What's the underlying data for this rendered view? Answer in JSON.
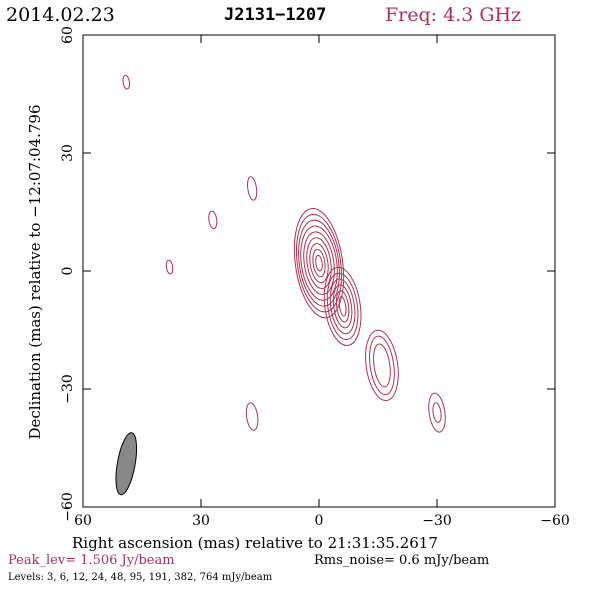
{
  "header": {
    "date": "2014.02.23",
    "source": "J2131−1207",
    "freq": "Freq: 4.3 GHz"
  },
  "footer": {
    "peak": "Peak_lev=  1.506 Jy/beam",
    "rms": "Rms_noise=  0.6 mJy/beam",
    "levels": "Levels:   3,   6,  12,  24,  48,  95, 191, 382, 764 mJy/beam"
  },
  "chart_data": {
    "type": "contour",
    "xlabel": "Right ascension (mas) relative to 21:31:35.2617",
    "ylabel": "Declination (mas) relative to −12:07:04.796",
    "xlim": [
      60,
      -60
    ],
    "ylim": [
      -60,
      60
    ],
    "xticks": [
      "60",
      "30",
      "0",
      "−30",
      "−60"
    ],
    "yticks": [
      "−60",
      "−30",
      "0",
      "30",
      "60"
    ],
    "xtick_values": [
      60,
      30,
      0,
      -30,
      -60
    ],
    "ytick_values": [
      -60,
      -30,
      0,
      30,
      60
    ],
    "contour_color": "#b03050",
    "beam_color": "#888888",
    "levels_mJy": [
      3,
      6,
      12,
      24,
      48,
      95,
      191,
      382,
      764
    ],
    "peak_Jy_per_beam": 1.506,
    "rms_mJy_per_beam": 0.6,
    "beam": {
      "x": 49,
      "y": -49,
      "major": 16,
      "minor": 4.5,
      "pa_deg": 10
    },
    "components": [
      {
        "x": 0,
        "y": 2,
        "levels": [
          {
            "w": 12,
            "h": 28
          },
          {
            "w": 11,
            "h": 25
          },
          {
            "w": 10,
            "h": 22
          },
          {
            "w": 9,
            "h": 19
          },
          {
            "w": 7.5,
            "h": 16
          },
          {
            "w": 6,
            "h": 13
          },
          {
            "w": 4.5,
            "h": 10
          },
          {
            "w": 3,
            "h": 7
          },
          {
            "w": 1.6,
            "h": 4
          }
        ]
      },
      {
        "x": -6,
        "y": -9,
        "levels": [
          {
            "w": 9,
            "h": 20
          },
          {
            "w": 7.5,
            "h": 17
          },
          {
            "w": 6,
            "h": 14
          },
          {
            "w": 4.5,
            "h": 11
          },
          {
            "w": 3,
            "h": 8
          },
          {
            "w": 1.6,
            "h": 5
          }
        ]
      },
      {
        "x": -16,
        "y": -24,
        "levels": [
          {
            "w": 8,
            "h": 18
          },
          {
            "w": 6,
            "h": 15
          },
          {
            "w": 4,
            "h": 11
          }
        ]
      },
      {
        "x": -30,
        "y": -36,
        "levels": [
          {
            "w": 4,
            "h": 10
          },
          {
            "w": 2,
            "h": 5
          }
        ]
      },
      {
        "x": 17,
        "y": -37,
        "levels": [
          {
            "w": 2.8,
            "h": 7
          }
        ]
      },
      {
        "x": 17,
        "y": 21,
        "levels": [
          {
            "w": 2.2,
            "h": 6
          }
        ]
      },
      {
        "x": 27,
        "y": 13,
        "levels": [
          {
            "w": 2,
            "h": 4.5
          }
        ]
      },
      {
        "x": 38,
        "y": 1,
        "levels": [
          {
            "w": 1.6,
            "h": 3.5
          }
        ]
      },
      {
        "x": 49,
        "y": 48,
        "levels": [
          {
            "w": 1.6,
            "h": 3.5
          }
        ]
      }
    ]
  }
}
